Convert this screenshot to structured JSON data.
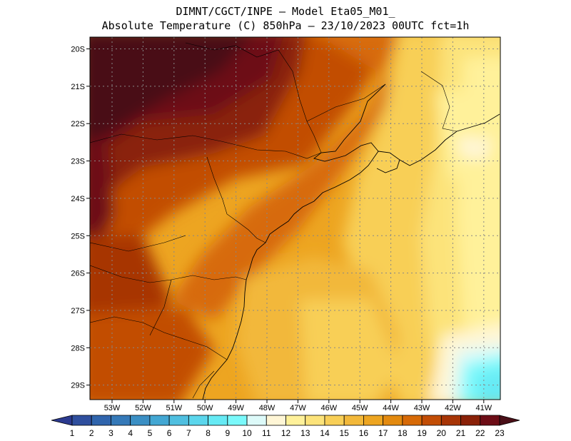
{
  "title_line1": "DIMNT/CGCT/INPE –  Model Eta05_M01_",
  "title_line2": "Absolute Temperature (C) 850hPa –  23/10/2023 00UTC fct=1h",
  "lat_labels": [
    "20S",
    "21S",
    "22S",
    "23S",
    "24S",
    "25S",
    "26S",
    "27S",
    "28S",
    "29S"
  ],
  "lon_labels": [
    "53W",
    "52W",
    "51W",
    "50W",
    "49W",
    "48W",
    "47W",
    "46W",
    "45W",
    "44W",
    "43W",
    "42W",
    "41W"
  ],
  "colorbar": {
    "labels": [
      "1",
      "2",
      "3",
      "4",
      "5",
      "6",
      "7",
      "8",
      "9",
      "10",
      "11",
      "12",
      "13",
      "14",
      "15",
      "16",
      "17",
      "18",
      "19",
      "20",
      "21",
      "22",
      "23"
    ],
    "colors": [
      "#2b3a8f",
      "#2f4f9e",
      "#3065ad",
      "#3579b8",
      "#3b8fc4",
      "#43a7d3",
      "#4fbfe0",
      "#5bd6ec",
      "#66eaf4",
      "#7af9fb",
      "#ddfaf9",
      "#fff6d6",
      "#fff19a",
      "#fce37a",
      "#f8cf57",
      "#f2b83a",
      "#eda521",
      "#e38a0f",
      "#d76a07",
      "#c24d05",
      "#a73506",
      "#8a2108",
      "#6d0d16",
      "#4a0f17"
    ]
  },
  "map": {
    "lon_range": [
      "53.5W",
      "40.6W"
    ],
    "lat_range": [
      "19.7S",
      "29.4S"
    ],
    "grid": "dotted"
  }
}
